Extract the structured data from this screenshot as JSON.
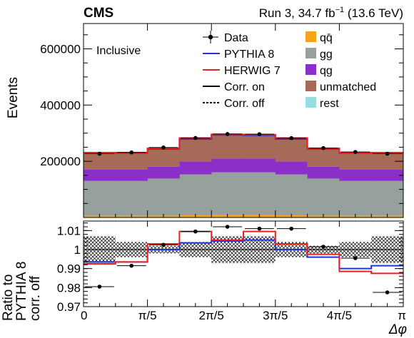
{
  "header": {
    "experiment": "CMS",
    "run_label": "Run 3, 34.7 fb",
    "run_exp": "−1",
    "run_energy": "(13.6 TeV)"
  },
  "chart_data": [
    {
      "type": "area",
      "panel": "main",
      "annotation": "Inclusive",
      "ylabel": "Events",
      "xlabel": "",
      "xlim": [
        0,
        3.14159
      ],
      "ylim": [
        0,
        690000
      ],
      "yticks": [
        200000,
        400000,
        600000
      ],
      "ytick_labels": [
        "200000",
        "400000",
        "600000"
      ],
      "bin_edges": [
        0,
        0.31416,
        0.62832,
        0.94248,
        1.25664,
        1.5708,
        1.88496,
        2.19911,
        2.51327,
        2.82743,
        3.14159
      ],
      "stack": [
        {
          "name": "qq̄",
          "color": "#f5a31a",
          "values": [
            6000,
            6000,
            6500,
            7500,
            8000,
            8000,
            7500,
            6500,
            6000,
            6000
          ]
        },
        {
          "name": "gg",
          "color": "#96a19d",
          "values": [
            124000,
            124000,
            132000,
            146000,
            153000,
            153000,
            146000,
            132000,
            124000,
            124000
          ]
        },
        {
          "name": "qg",
          "color": "#8a2fc8",
          "values": [
            40000,
            40000,
            42000,
            46000,
            49000,
            49000,
            46000,
            42000,
            40000,
            40000
          ]
        },
        {
          "name": "unmatched",
          "color": "#a66a59",
          "values": [
            59000,
            59000,
            63000,
            79000,
            83000,
            82000,
            79000,
            63000,
            59000,
            59000
          ]
        },
        {
          "name": "rest",
          "color": "#98dde0",
          "values": [
            500,
            500,
            500,
            500,
            500,
            500,
            500,
            500,
            500,
            500
          ]
        }
      ],
      "lines": [
        {
          "name": "PYTHIA 8",
          "color": "#2233d6",
          "values": [
            229500,
            229500,
            244000,
            279000,
            293500,
            292500,
            279000,
            244000,
            229500,
            229500
          ]
        },
        {
          "name": "HERWIG 7",
          "color": "#ee1f1f",
          "values": [
            231000,
            231000,
            246000,
            283000,
            296000,
            295000,
            283000,
            246000,
            231000,
            231000
          ]
        }
      ],
      "data": {
        "name": "Data",
        "x": [
          0.15708,
          0.47124,
          0.7854,
          1.09956,
          1.41372,
          1.72788,
          2.04204,
          2.3562,
          2.67035,
          2.98451
        ],
        "y": [
          227000,
          231500,
          249000,
          283000,
          297000,
          296500,
          282500,
          247000,
          233000,
          227000
        ]
      },
      "legend": [
        "Data",
        "PYTHIA 8",
        "HERWIG 7",
        "Corr. on",
        "Corr. off",
        "qq̄",
        "gg",
        "qg",
        "unmatched",
        "rest"
      ]
    },
    {
      "type": "line",
      "panel": "ratio",
      "ylabel": [
        "Ratio to",
        "PYTHIA 8",
        "corr. off"
      ],
      "xlabel": "Δφ",
      "xlim": [
        0,
        3.14159
      ],
      "ylim": [
        0.97,
        1.015
      ],
      "yticks": [
        0.97,
        0.98,
        0.99,
        1.0,
        1.01
      ],
      "ytick_labels": [
        "0.97",
        "0.98",
        "0.99",
        "1",
        "1.01"
      ],
      "xticks": [
        0,
        0.62832,
        1.25664,
        1.88496,
        2.51327,
        3.14159
      ],
      "xtick_labels": [
        "0",
        "π/5",
        "2π/5",
        "3π/5",
        "4π/5",
        "π"
      ],
      "bin_edges": [
        0,
        0.31416,
        0.62832,
        0.94248,
        1.25664,
        1.5708,
        1.88496,
        2.19911,
        2.51327,
        2.82743,
        3.14159
      ],
      "uncertainty_band": {
        "lo": [
          0.993,
          0.996,
          0.998,
          0.996,
          0.993,
          0.993,
          0.996,
          0.998,
          0.996,
          0.993
        ],
        "hi": [
          1.007,
          1.004,
          1.002,
          1.004,
          1.007,
          1.007,
          1.004,
          1.002,
          1.004,
          1.007
        ]
      },
      "series": [
        {
          "name": "PYTHIA 8",
          "color": "#2233d6",
          "values": [
            0.9935,
            0.9935,
            1.0,
            1.0035,
            1.0045,
            1.005,
            1.0,
            0.996,
            0.99,
            0.9915
          ]
        },
        {
          "name": "HERWIG 7",
          "color": "#ee1f1f",
          "values": [
            0.9925,
            0.9935,
            1.003,
            1.0095,
            1.005,
            1.0095,
            1.003,
            0.9975,
            0.9885,
            0.9875
          ]
        }
      ],
      "data": {
        "x": [
          0.15708,
          0.47124,
          0.7854,
          1.09956,
          1.41372,
          1.72788,
          2.04204,
          2.3562,
          2.67035,
          2.98451
        ],
        "y": [
          0.9805,
          0.9915,
          1.0025,
          1.0095,
          1.012,
          1.011,
          1.011,
          1.0015,
          0.9955,
          0.9775
        ]
      }
    }
  ]
}
